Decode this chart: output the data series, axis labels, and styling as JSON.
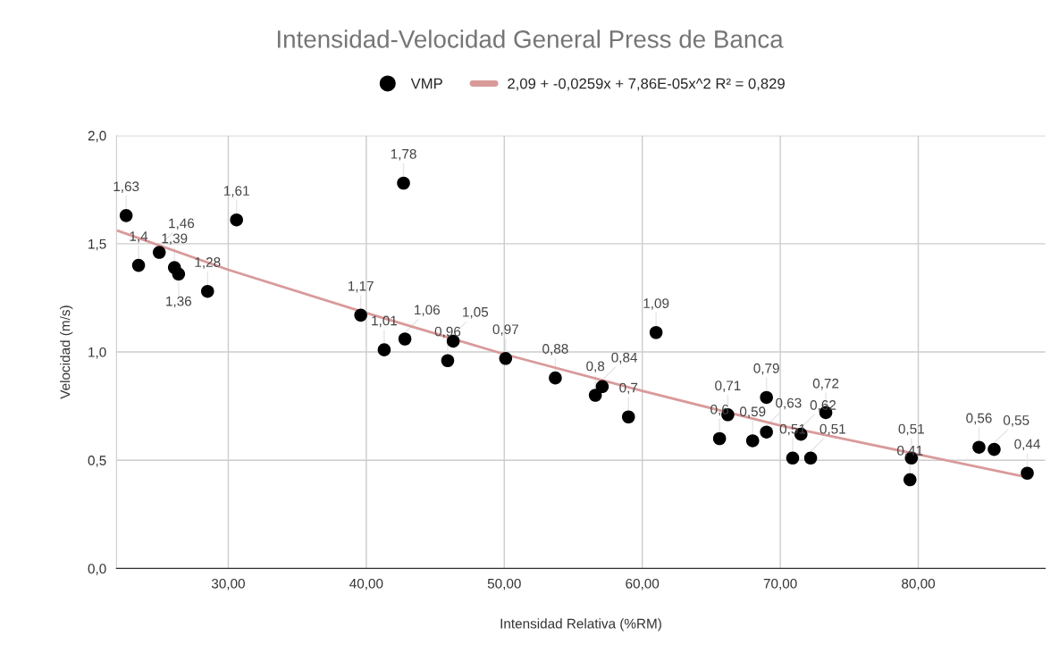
{
  "chart_data": {
    "type": "scatter",
    "title": "Intensidad-Velocidad General Press de Banca",
    "xlabel": "Intensidad Relativa (%RM)",
    "ylabel": "Velocidad (m/s)",
    "xlim": [
      21.9,
      89.2
    ],
    "ylim": [
      0,
      2.0
    ],
    "xticks": [
      {
        "value": 30,
        "label": "30,00"
      },
      {
        "value": 40,
        "label": "40,00"
      },
      {
        "value": 50,
        "label": "50,00"
      },
      {
        "value": 60,
        "label": "60,00"
      },
      {
        "value": 70,
        "label": "70,00"
      },
      {
        "value": 80,
        "label": "80,00"
      }
    ],
    "yticks": [
      {
        "value": 0,
        "label": "0,0"
      },
      {
        "value": 0.5,
        "label": "0,5"
      },
      {
        "value": 1.0,
        "label": "1,0"
      },
      {
        "value": 1.5,
        "label": "1,5"
      },
      {
        "value": 2.0,
        "label": "2,0"
      }
    ],
    "grid": true,
    "legend": "top",
    "series": [
      {
        "name": "VMP",
        "marker": "circle",
        "color": "#000000",
        "x": [
          22.6,
          23.5,
          25.0,
          26.1,
          26.4,
          28.5,
          30.6,
          42.7,
          39.6,
          41.3,
          42.8,
          45.9,
          46.3,
          50.1,
          53.7,
          56.6,
          57.1,
          59.0,
          61.0,
          65.6,
          66.2,
          68.0,
          69.0,
          69.0,
          70.9,
          71.5,
          72.2,
          73.3,
          79.5,
          79.4,
          84.4,
          85.5,
          87.9
        ],
        "values": [
          1.63,
          1.4,
          1.46,
          1.39,
          1.36,
          1.28,
          1.61,
          1.78,
          1.17,
          1.01,
          1.06,
          0.96,
          1.05,
          0.97,
          0.88,
          0.8,
          0.84,
          0.7,
          1.09,
          0.6,
          0.71,
          0.59,
          0.63,
          0.79,
          0.51,
          0.62,
          0.51,
          0.72,
          0.51,
          0.41,
          0.56,
          0.55,
          0.44
        ],
        "value_labels": [
          "1,63",
          "1,4",
          "1,46",
          "1,39",
          "1,36",
          "1,28",
          "1,61",
          "1,78",
          "1,17",
          "1,01",
          "1,06",
          "0,96",
          "1,05",
          "0,97",
          "0,88",
          "0,8",
          "0,84",
          "0,7",
          "1,09",
          "0,6",
          "0,71",
          "0,59",
          "0,63",
          "0,79",
          "0,51",
          "0,62",
          "0,51",
          "0,72",
          "0,51",
          "0,41",
          "0,56",
          "0,55",
          "0,44"
        ]
      },
      {
        "name": "2,09 + -0,0259x + 7,86E-05x^2 R² = 0,829",
        "type": "line",
        "color": "#d99a9a",
        "x": [
          22,
          30,
          40,
          50,
          60,
          70,
          76,
          88
        ],
        "values": [
          1.56,
          1.38,
          1.18,
          0.99,
          0.82,
          0.66,
          0.58,
          0.42
        ]
      }
    ]
  }
}
